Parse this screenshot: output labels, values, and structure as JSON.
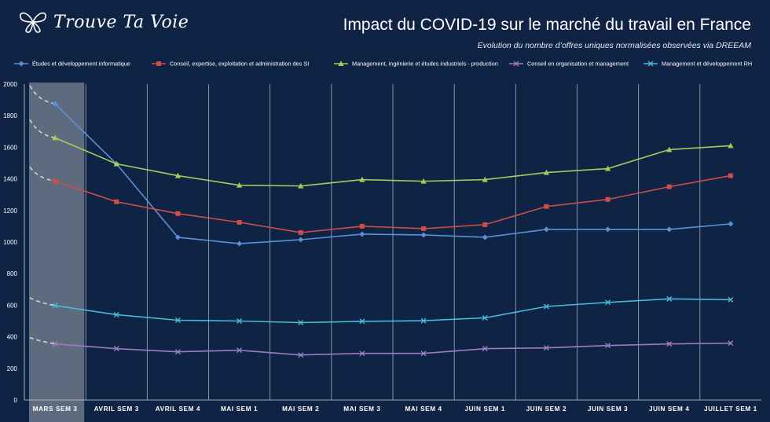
{
  "header": {
    "logo_text": "Trouve Ta Voie",
    "title": "Impact du COVID-19 sur le marché du travail en France",
    "subtitle": "Evolution du nombre d’offres uniques normalisées observées via DREEAM"
  },
  "colors": {
    "background": "#0f2444",
    "highlight": "#7d8794",
    "dashed": "#d9d9d9"
  },
  "chart_data": {
    "type": "line",
    "title": "Impact du COVID-19 sur le marché du travail en France",
    "categories": [
      "MARS SEM 3",
      "AVRIL SEM 3",
      "AVRIL SEM 4",
      "MAI SEM 1",
      "MAI SEM 2",
      "MAI SEM 3",
      "MAI SEM 4",
      "JUIN SEM 1",
      "JUIN SEM 2",
      "JUIN SEM 3",
      "JUIN SEM 4",
      "JUILLET SEM 1"
    ],
    "ylim": [
      0,
      2000
    ],
    "yticks": [
      0,
      200,
      400,
      600,
      800,
      1000,
      1200,
      1400,
      1600,
      1800,
      2000
    ],
    "highlighted_category": "MARS SEM 3",
    "legend_position": "top",
    "series": [
      {
        "name": "Études et développement informatique",
        "color": "#5b8fd6",
        "marker": "diamond",
        "values": [
          1875,
          1495,
          1030,
          990,
          1015,
          1050,
          1045,
          1030,
          1080,
          1080,
          1080,
          1115
        ],
        "lead_in": 1990
      },
      {
        "name": "Conseil, expertise, exploitation et administration des SI",
        "color": "#d04c47",
        "marker": "square",
        "values": [
          1385,
          1255,
          1180,
          1125,
          1060,
          1100,
          1085,
          1110,
          1225,
          1270,
          1350,
          1420
        ],
        "lead_in": 1475
      },
      {
        "name": "Management, ingénierie et études industriels - production",
        "color": "#9fcf5a",
        "marker": "triangle",
        "values": [
          1660,
          1495,
          1420,
          1360,
          1355,
          1395,
          1385,
          1395,
          1440,
          1465,
          1585,
          1610
        ],
        "lead_in": 1775
      },
      {
        "name": "Conseil en organisation et management",
        "color": "#9b7cc4",
        "marker": "x",
        "values": [
          355,
          325,
          305,
          315,
          285,
          295,
          295,
          325,
          330,
          345,
          355,
          360
        ],
        "lead_in": 395
      },
      {
        "name": "Management et développement RH",
        "color": "#4ab8d8",
        "marker": "x",
        "values": [
          598,
          540,
          505,
          500,
          490,
          498,
          502,
          520,
          592,
          618,
          640,
          635
        ],
        "lead_in": 648
      }
    ]
  }
}
